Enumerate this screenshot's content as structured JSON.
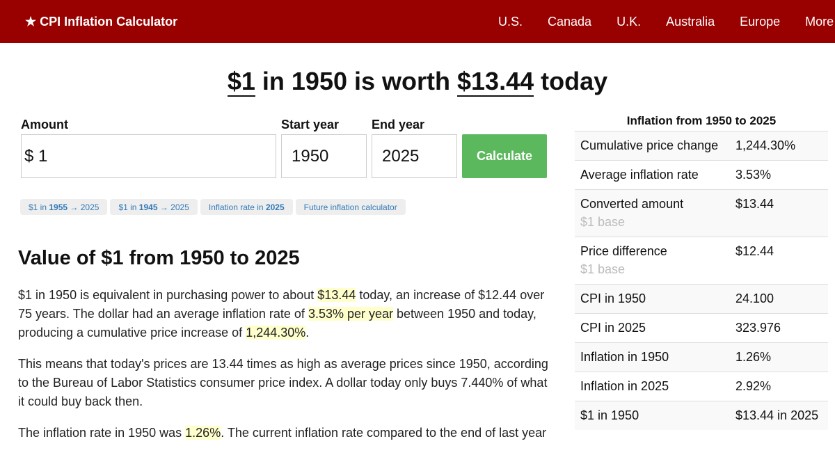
{
  "header": {
    "brand": "★ CPI Inflation Calculator",
    "nav": [
      "U.S.",
      "Canada",
      "U.K.",
      "Australia",
      "Europe",
      "More"
    ]
  },
  "headline": {
    "amount": "$1",
    "mid": " in 1950 is worth ",
    "value": "$13.44",
    "end": " today"
  },
  "form": {
    "amount_label": "Amount",
    "amount_prefix": "$",
    "amount_value": "1",
    "start_label": "Start year",
    "start_value": "1950",
    "end_label": "End year",
    "end_value": "2025",
    "calculate": "Calculate"
  },
  "chips": [
    {
      "a": "$1 in ",
      "b": "1955",
      "c": " → 2025"
    },
    {
      "a": "$1 in ",
      "b": "1945",
      "c": " → 2025"
    },
    {
      "a": "Inflation rate in ",
      "b": "2025",
      "c": ""
    },
    {
      "a": "Future inflation calculator",
      "b": "",
      "c": ""
    }
  ],
  "section": {
    "title": "Value of $1 from 1950 to 2025",
    "p1": {
      "a": "$1 in 1950 is equivalent in purchasing power to about ",
      "b": "$13.44",
      "c": " today, an increase of $12.44 over 75 years. The dollar had an average inflation rate of ",
      "d": "3.53% per year",
      "e": " between 1950 and today, producing a cumulative price increase of ",
      "f": "1,244.30%",
      "g": "."
    },
    "p2": "This means that today's prices are 13.44 times as high as average prices since 1950, according to the Bureau of Labor Statistics consumer price index. A dollar today only buys 7.440% of what it could buy back then.",
    "p3": {
      "a": "The inflation rate in 1950 was ",
      "b": "1.26%",
      "c": ". The current inflation rate compared to the end of last year"
    }
  },
  "sidebar": {
    "title": "Inflation from 1950 to 2025",
    "rows": [
      {
        "k": "Cumulative price change",
        "v": "1,244.30%",
        "sub": ""
      },
      {
        "k": "Average inflation rate",
        "v": "3.53%",
        "sub": ""
      },
      {
        "k": "Converted amount",
        "v": "$13.44",
        "sub": "$1 base"
      },
      {
        "k": "Price difference",
        "v": "$12.44",
        "sub": "$1 base"
      },
      {
        "k": "CPI in 1950",
        "v": "24.100",
        "sub": ""
      },
      {
        "k": "CPI in 2025",
        "v": "323.976",
        "sub": ""
      },
      {
        "k": "Inflation in 1950",
        "v": "1.26%",
        "sub": ""
      },
      {
        "k": "Inflation in 2025",
        "v": "2.92%",
        "sub": ""
      },
      {
        "k": "$1 in 1950",
        "v": "$13.44 in 2025",
        "sub": ""
      }
    ]
  },
  "colors": {
    "header": "#990000",
    "button": "#5cb85c",
    "link": "#337ab7",
    "highlight": "#ffffcc"
  }
}
